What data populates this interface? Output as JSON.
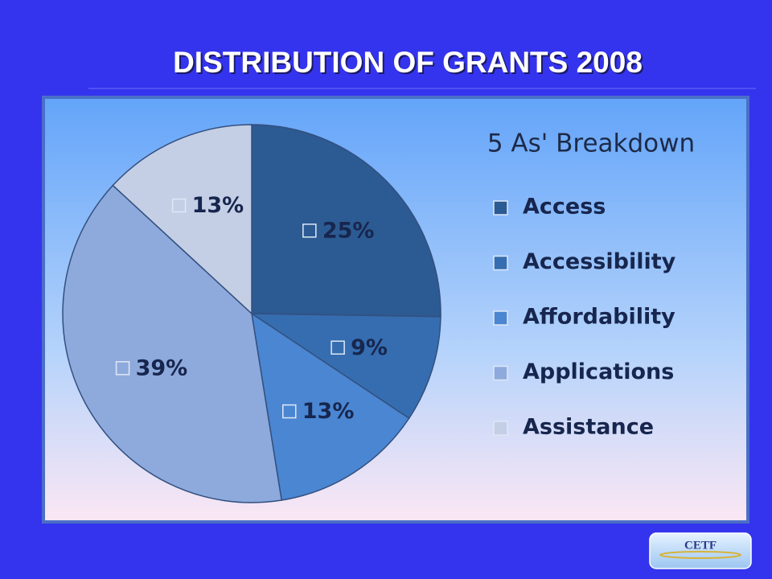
{
  "page_title": "DISTRIBUTION OF GRANTS 2008",
  "logo": "CETF",
  "chart_data": {
    "type": "pie",
    "title": "5 As' Breakdown",
    "categories": [
      "Access",
      "Accessibility",
      "Affordability",
      "Applications",
      "Assistance"
    ],
    "values": [
      25,
      9,
      13,
      39,
      13
    ],
    "value_labels": [
      "25%",
      "9%",
      "13%",
      "39%",
      "13%"
    ],
    "colors": [
      "#2c5a92",
      "#356db0",
      "#4a86d2",
      "#8eaadc",
      "#c4cfe6"
    ],
    "legend": "right"
  }
}
